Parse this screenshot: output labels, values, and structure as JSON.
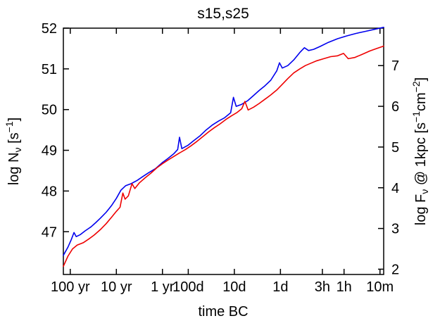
{
  "chart_data": {
    "type": "line",
    "title": "s15,s25",
    "xlabel": "time BC",
    "ylabel_left": "log Nν [s−1]",
    "ylabel_right": "log Fν @ 1kpc [s−1cm−2]",
    "grid": false,
    "legend": "none",
    "x_axis": {
      "kind": "time-before-collapse-log-decreasing",
      "xlim_logt": [
        9.65,
        2.7
      ],
      "ticks": [
        {
          "label": "100 yr",
          "logt": 9.5
        },
        {
          "label": "10 yr",
          "logt": 8.5
        },
        {
          "label": "1 yr",
          "logt": 7.5
        },
        {
          "label": "100d",
          "logt": 6.94
        },
        {
          "label": "10d",
          "logt": 5.94
        },
        {
          "label": "1d",
          "logt": 4.94
        },
        {
          "label": "3h",
          "logt": 4.03
        },
        {
          "label": "1h",
          "logt": 3.56
        },
        {
          "label": "10m",
          "logt": 2.78
        }
      ]
    },
    "y_axis_left": {
      "lim": [
        45.95,
        52.0
      ],
      "ticks": [
        47,
        48,
        49,
        50,
        51,
        52
      ]
    },
    "y_axis_right": {
      "ticks": [
        2,
        3,
        4,
        5,
        6,
        7
      ],
      "left_equals_right_plus": 44.08
    },
    "series": [
      {
        "name": "blue",
        "color": "#0000ee",
        "points": [
          [
            9.65,
            46.42
          ],
          [
            9.55,
            46.62
          ],
          [
            9.48,
            46.8
          ],
          [
            9.42,
            46.98
          ],
          [
            9.37,
            46.88
          ],
          [
            9.28,
            46.93
          ],
          [
            9.18,
            47.02
          ],
          [
            9.05,
            47.12
          ],
          [
            8.95,
            47.22
          ],
          [
            8.85,
            47.33
          ],
          [
            8.72,
            47.48
          ],
          [
            8.6,
            47.65
          ],
          [
            8.5,
            47.82
          ],
          [
            8.4,
            48.02
          ],
          [
            8.3,
            48.13
          ],
          [
            8.18,
            48.18
          ],
          [
            8.05,
            48.26
          ],
          [
            7.92,
            48.36
          ],
          [
            7.8,
            48.45
          ],
          [
            7.65,
            48.55
          ],
          [
            7.5,
            48.7
          ],
          [
            7.38,
            48.8
          ],
          [
            7.25,
            48.92
          ],
          [
            7.17,
            49.02
          ],
          [
            7.13,
            49.32
          ],
          [
            7.08,
            49.04
          ],
          [
            6.95,
            49.12
          ],
          [
            6.82,
            49.24
          ],
          [
            6.68,
            49.36
          ],
          [
            6.55,
            49.5
          ],
          [
            6.42,
            49.62
          ],
          [
            6.28,
            49.72
          ],
          [
            6.15,
            49.8
          ],
          [
            6.02,
            49.92
          ],
          [
            5.96,
            50.3
          ],
          [
            5.9,
            50.08
          ],
          [
            5.78,
            50.13
          ],
          [
            5.65,
            50.22
          ],
          [
            5.52,
            50.35
          ],
          [
            5.4,
            50.47
          ],
          [
            5.28,
            50.58
          ],
          [
            5.15,
            50.72
          ],
          [
            5.02,
            50.95
          ],
          [
            4.96,
            51.15
          ],
          [
            4.9,
            51.02
          ],
          [
            4.78,
            51.08
          ],
          [
            4.65,
            51.22
          ],
          [
            4.52,
            51.4
          ],
          [
            4.42,
            51.52
          ],
          [
            4.33,
            51.45
          ],
          [
            4.22,
            51.48
          ],
          [
            4.08,
            51.55
          ],
          [
            3.9,
            51.65
          ],
          [
            3.7,
            51.74
          ],
          [
            3.5,
            51.81
          ],
          [
            3.3,
            51.87
          ],
          [
            3.1,
            51.92
          ],
          [
            2.9,
            51.97
          ],
          [
            2.7,
            52.02
          ]
        ]
      },
      {
        "name": "red",
        "color": "#ee0000",
        "points": [
          [
            9.65,
            46.15
          ],
          [
            9.55,
            46.4
          ],
          [
            9.45,
            46.58
          ],
          [
            9.35,
            46.67
          ],
          [
            9.22,
            46.73
          ],
          [
            9.1,
            46.82
          ],
          [
            8.98,
            46.92
          ],
          [
            8.85,
            47.05
          ],
          [
            8.72,
            47.2
          ],
          [
            8.6,
            47.36
          ],
          [
            8.5,
            47.5
          ],
          [
            8.42,
            47.6
          ],
          [
            8.36,
            47.95
          ],
          [
            8.31,
            47.8
          ],
          [
            8.24,
            47.88
          ],
          [
            8.16,
            48.18
          ],
          [
            8.1,
            48.06
          ],
          [
            8.0,
            48.2
          ],
          [
            7.88,
            48.32
          ],
          [
            7.75,
            48.44
          ],
          [
            7.62,
            48.57
          ],
          [
            7.5,
            48.67
          ],
          [
            7.38,
            48.76
          ],
          [
            7.25,
            48.85
          ],
          [
            7.12,
            48.94
          ],
          [
            7.0,
            49.02
          ],
          [
            6.88,
            49.11
          ],
          [
            6.75,
            49.22
          ],
          [
            6.62,
            49.34
          ],
          [
            6.5,
            49.45
          ],
          [
            6.38,
            49.55
          ],
          [
            6.25,
            49.65
          ],
          [
            6.12,
            49.76
          ],
          [
            6.0,
            49.85
          ],
          [
            5.88,
            49.93
          ],
          [
            5.78,
            50.02
          ],
          [
            5.71,
            50.2
          ],
          [
            5.64,
            49.99
          ],
          [
            5.52,
            50.06
          ],
          [
            5.4,
            50.15
          ],
          [
            5.28,
            50.25
          ],
          [
            5.15,
            50.36
          ],
          [
            5.02,
            50.48
          ],
          [
            4.9,
            50.62
          ],
          [
            4.78,
            50.76
          ],
          [
            4.65,
            50.9
          ],
          [
            4.52,
            51.0
          ],
          [
            4.4,
            51.08
          ],
          [
            4.28,
            51.14
          ],
          [
            4.15,
            51.2
          ],
          [
            4.0,
            51.25
          ],
          [
            3.85,
            51.3
          ],
          [
            3.7,
            51.32
          ],
          [
            3.57,
            51.38
          ],
          [
            3.47,
            51.25
          ],
          [
            3.33,
            51.28
          ],
          [
            3.18,
            51.35
          ],
          [
            3.0,
            51.44
          ],
          [
            2.85,
            51.5
          ],
          [
            2.7,
            51.56
          ]
        ]
      }
    ]
  },
  "labels": {
    "title": "s15,s25",
    "xlabel": "time BC",
    "left": {
      "p1": "log N",
      "sub": "ν",
      "p2": " [s",
      "sup": "−1",
      "p3": "]"
    },
    "right": {
      "p1": "log F",
      "sub": "ν",
      "p2": " @ 1kpc [s",
      "sup1": "−1",
      "p3": "cm",
      "sup2": "−2",
      "p4": "]"
    }
  }
}
